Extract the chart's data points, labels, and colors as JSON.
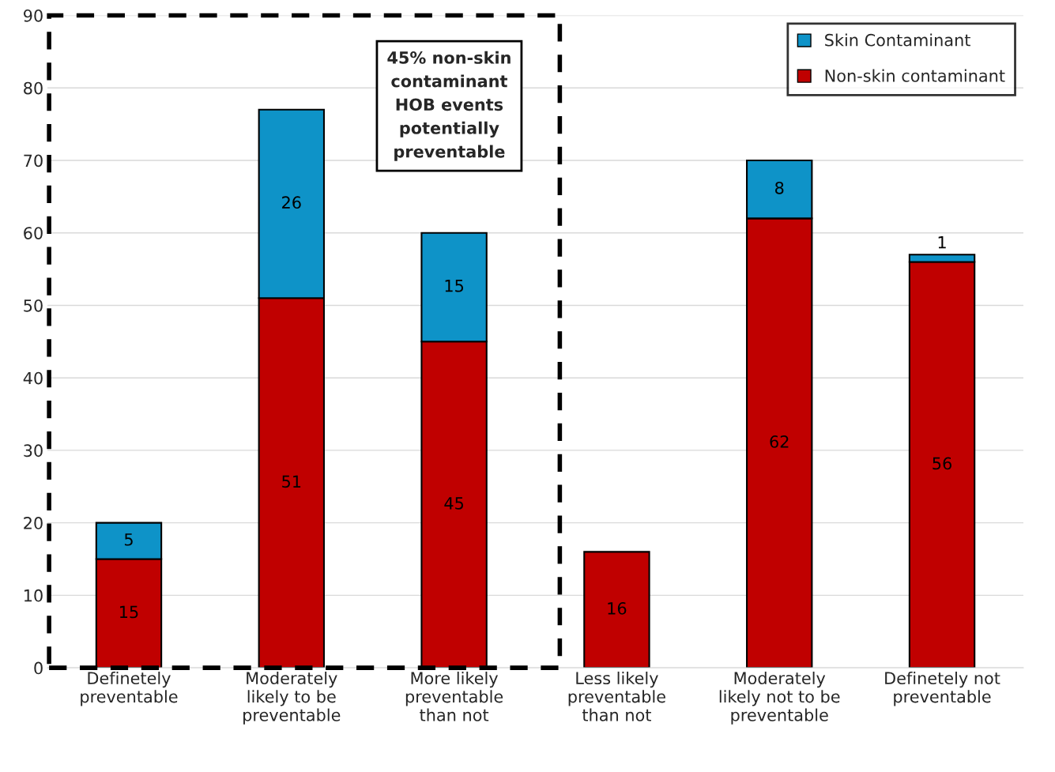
{
  "chart_data": {
    "type": "bar",
    "stacked": true,
    "categories": [
      "Definetely\npreventable",
      "Moderately\nlikely to be\npreventable",
      "More likely\npreventable\nthan not",
      "Less likely\npreventable\nthan not",
      "Moderately\nlikely not to be\npreventable",
      "Definetely not\npreventable"
    ],
    "series": [
      {
        "name": "Non-skin contaminant",
        "color": "#c00000",
        "values": [
          15,
          51,
          45,
          16,
          62,
          56
        ]
      },
      {
        "name": "Skin Contaminant",
        "color": "#0e93c8",
        "values": [
          5,
          26,
          15,
          null,
          8,
          1
        ]
      }
    ],
    "ylim": [
      0,
      90
    ],
    "yticks": [
      0,
      10,
      20,
      30,
      40,
      50,
      60,
      70,
      80,
      90
    ],
    "grid": "y",
    "legend": "top right",
    "data_labels": true,
    "annotations": [
      "45% non-skin\ncontaminant\nHOB events\npotentially\npreventable"
    ]
  }
}
